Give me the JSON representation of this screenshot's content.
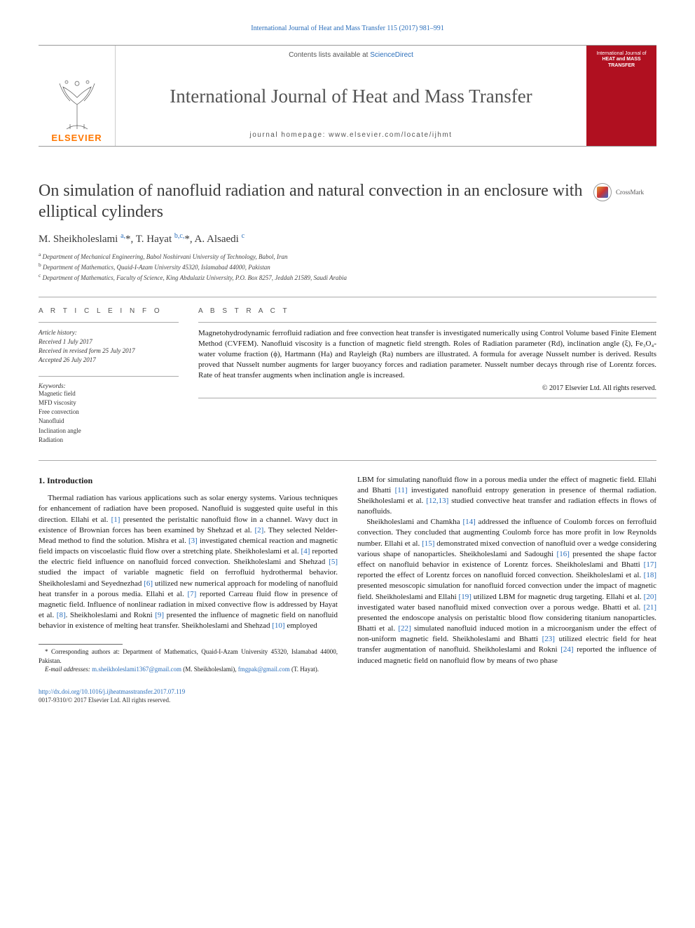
{
  "top_citation": "International Journal of Heat and Mass Transfer 115 (2017) 981–991",
  "header": {
    "contents_prefix": "Contents lists available at ",
    "contents_link": "ScienceDirect",
    "journal_name": "International Journal of Heat and Mass Transfer",
    "homepage_prefix": "journal homepage: ",
    "homepage_url": "www.elsevier.com/locate/ijhmt",
    "elsevier": "ELSEVIER",
    "cover_line1": "International Journal of",
    "cover_line2": "HEAT and MASS",
    "cover_line3": "TRANSFER"
  },
  "crossmark": "CrossMark",
  "title": "On simulation of nanofluid radiation and natural convection in an enclosure with elliptical cylinders",
  "authors_html": "M. Sheikholeslami <sup>a,</sup><span class='star'>*</span>, T. Hayat <sup>b,c,</sup><span class='star'>*</span>, A. Alsaedi <sup>c</sup>",
  "affiliations": [
    "a Department of Mechanical Engineering, Babol Noshirvani University of Technology, Babol, Iran",
    "b Department of Mathematics, Quaid-I-Azam University 45320, Islamabad 44000, Pakistan",
    "c Department of Mathematics, Faculty of Science, King Abdulaziz University, P.O. Box 8257, Jeddah 21589, Saudi Arabia"
  ],
  "labels": {
    "article_info": "A R T I C L E   I N F O",
    "abstract": "A B S T R A C T"
  },
  "history": {
    "header": "Article history:",
    "received": "Received 1 July 2017",
    "revised": "Received in revised form 25 July 2017",
    "accepted": "Accepted 26 July 2017"
  },
  "keywords_header": "Keywords:",
  "keywords": [
    "Magnetic field",
    "MFD viscosity",
    "Free convection",
    "Nanofluid",
    "Inclination angle",
    "Radiation"
  ],
  "abstract": "Magnetohydrodynamic ferrofluid radiation and free convection heat transfer is investigated numerically using Control Volume based Finite Element Method (CVFEM). Nanofluid viscosity is a function of magnetic field strength. Roles of Radiation parameter (Rd), inclination angle (ξ), Fe₃O₄-water volume fraction (ϕ), Hartmann (Ha) and Rayleigh (Ra) numbers are illustrated. A formula for average Nusselt number is derived. Results proved that Nusselt number augments for larger buoyancy forces and radiation parameter. Nusselt number decays through rise of Lorentz forces. Rate of heat transfer augments when inclination angle is increased.",
  "copyright": "© 2017 Elsevier Ltd. All rights reserved.",
  "intro_heading": "1. Introduction",
  "col1_para": "Thermal radiation has various applications such as solar energy systems. Various techniques for enhancement of radiation have been proposed. Nanofluid is suggested quite useful in this direction. Ellahi et al. [1] presented the peristaltic nanofluid flow in a channel. Wavy duct in existence of Brownian forces has been examined by Shehzad et al. [2]. They selected Nelder-Mead method to find the solution. Mishra et al. [3] investigated chemical reaction and magnetic field impacts on viscoelastic fluid flow over a stretching plate. Sheikholeslami et al. [4] reported the electric field influence on nanofluid forced convection. Sheikholeslami and Shehzad [5] studied the impact of variable magnetic field on ferrofluid hydrothermal behavior. Sheikholeslami and Seyednezhad [6] utilized new numerical approach for modeling of nanofluid heat transfer in a porous media. Ellahi et al. [7] reported Carreau fluid flow in presence of magnetic field. Influence of nonlinear radiation in mixed convective flow is addressed by Hayat et al. [8]. Sheikholeslami and Rokni [9] presented the influence of magnetic field on nanofluid behavior in existence of melting heat transfer. Sheikholeslami and Shehzad [10] employed",
  "col2_para1": "LBM for simulating nanofluid flow in a porous media under the effect of magnetic field. Ellahi and Bhatti [11] investigated nanofluid entropy generation in presence of thermal radiation. Sheikholeslami et al. [12,13] studied convective heat transfer and radiation effects in flows of nanofluids.",
  "col2_para2": "Sheikholeslami and Chamkha [14] addressed the influence of Coulomb forces on ferrofluid convection. They concluded that augmenting Coulomb force has more profit in low Reynolds number. Ellahi et al. [15] demonstrated mixed convection of nanofluid over a wedge considering various shape of nanoparticles. Sheikholeslami and Sadoughi [16] presented the shape factor effect on nanofluid behavior in existence of Lorentz forces. Sheikholeslami and Bhatti [17] reported the effect of Lorentz forces on nanofluid forced convection. Sheikholeslami et al. [18] presented mesoscopic simulation for nanofluid forced convection under the impact of magnetic field. Sheikholeslami and Ellahi [19] utilized LBM for magnetic drug targeting. Ellahi et al. [20] investigated water based nanofluid mixed convection over a porous wedge. Bhatti et al. [21] presented the endoscope analysis on peristaltic blood flow considering titanium nanoparticles. Bhatti et al. [22] simulated nanofluid induced motion in a microorganism under the effect of non-uniform magnetic field. Sheikholeslami and Bhatti [23] utilized electric field for heat transfer augmentation of nanofluid. Sheikholeslami and Rokni [24] reported the influence of induced magnetic field on nanofluid flow by means of two phase",
  "footnote": {
    "star": "* Corresponding authors at: Department of Mathematics, Quaid-I-Azam University 45320, Islamabad 44000, Pakistan.",
    "email_label": "E-mail addresses: ",
    "email1": "m.sheikholeslami1367@gmail.com",
    "name1": " (M. Sheikholeslami), ",
    "email2": "fmgpak@gmail.com",
    "name2": " (T. Hayat)."
  },
  "doi": "http://dx.doi.org/10.1016/j.ijheatmasstransfer.2017.07.119",
  "issn": "0017-9310/© 2017 Elsevier Ltd. All rights reserved.",
  "colors": {
    "link": "#2a6ebb",
    "elsevier_orange": "#ff7700",
    "cover_red": "#b01020",
    "text": "#1a1a1a",
    "grey_text": "#555555",
    "rule": "#aaaaaa"
  },
  "refs_col1": [
    "[1]",
    "[2]",
    "[3]",
    "[4]",
    "[5]",
    "[6]",
    "[7]",
    "[8]",
    "[9]",
    "[10]"
  ],
  "refs_col2": [
    "[11]",
    "[12,13]",
    "[14]",
    "[15]",
    "[16]",
    "[17]",
    "[18]",
    "[19]",
    "[20]",
    "[21]",
    "[22]",
    "[23]",
    "[24]"
  ]
}
